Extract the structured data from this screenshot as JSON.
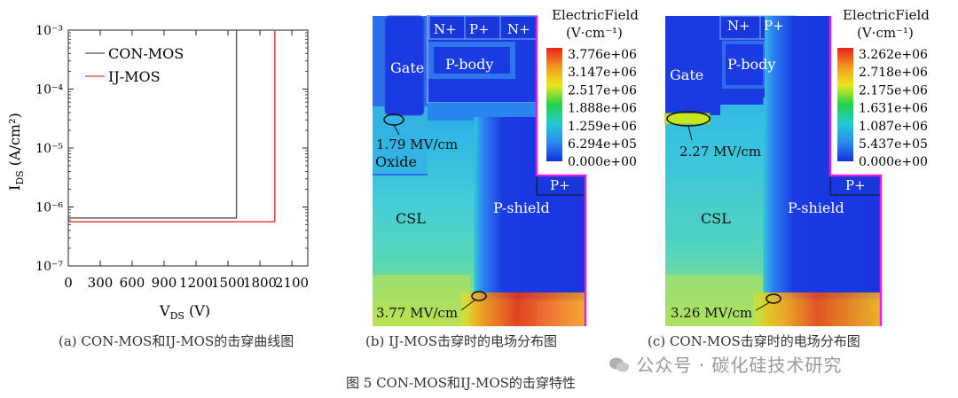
{
  "figure_caption": "图 5 CON-MOS和IJ-MOS的击穿特性",
  "watermark": "公众号 · 碳化硅技术研究",
  "chart_data": {
    "type": "line",
    "subcaption": "(a) CON-MOS和IJ-MOS的击穿曲线图",
    "xlabel": "V_DS (V)",
    "ylabel": "I_DS (A/cm²)",
    "x_ticks": [
      "0",
      "300",
      "600",
      "900",
      "1200",
      "1500",
      "1800",
      "2100"
    ],
    "y_ticks": [
      "10⁻³",
      "10⁻⁴",
      "10⁻⁵",
      "10⁻⁶",
      "10⁻⁷"
    ],
    "xlim": [
      0,
      2250
    ],
    "ylim": [
      1e-07,
      0.001
    ],
    "y_scale": "log",
    "legend_position": "top-left",
    "series": [
      {
        "name": "CON-MOS",
        "color": "#555555",
        "x": [
          0,
          1580,
          1580
        ],
        "y": [
          6.5e-07,
          6.5e-07,
          0.001
        ]
      },
      {
        "name": "IJ-MOS",
        "color": "#e03030",
        "x": [
          0,
          1940,
          1940
        ],
        "y": [
          5.6e-07,
          5.6e-07,
          0.001
        ]
      }
    ]
  },
  "panel_b": {
    "subcaption": "(b) IJ-MOS击穿时的电场分布图",
    "colorbar_title": "ElectricField",
    "colorbar_unit": "(V·cm⁻¹)",
    "colorbar_labels": [
      "3.776e+06",
      "3.147e+06",
      "2.517e+06",
      "1.888e+06",
      "1.259e+06",
      "6.294e+05",
      "0.000e+00"
    ],
    "regions": {
      "gate": "Gate",
      "n_plus_1": "N+",
      "p_plus_top": "P+",
      "n_plus_2": "N+",
      "p_body": "P-body",
      "oxide": "Oxide",
      "csl": "CSL",
      "p_shield": "P-shield",
      "p_plus_side": "P+"
    },
    "annotation_oxide": "1.79 MV/cm",
    "annotation_peak": "3.77 MV/cm"
  },
  "panel_c": {
    "subcaption": "(c) CON-MOS击穿时的电场分布图",
    "colorbar_title": "ElectricField",
    "colorbar_unit": "(V·cm⁻¹)",
    "colorbar_labels": [
      "3.262e+06",
      "2.718e+06",
      "2.175e+06",
      "1.631e+06",
      "1.087e+06",
      "5.437e+05",
      "0.000e+00"
    ],
    "regions": {
      "gate": "Gate",
      "n_plus": "N+",
      "p_plus_top": "P+",
      "p_body": "P-body",
      "csl": "CSL",
      "p_shield": "P-shield",
      "p_plus_side": "P+"
    },
    "annotation_oxide": "2.27 MV/cm",
    "annotation_peak": "3.26 MV/cm"
  },
  "colors": {
    "magenta_outline": "#e020e0",
    "device_blue": "#1a3fe0"
  }
}
